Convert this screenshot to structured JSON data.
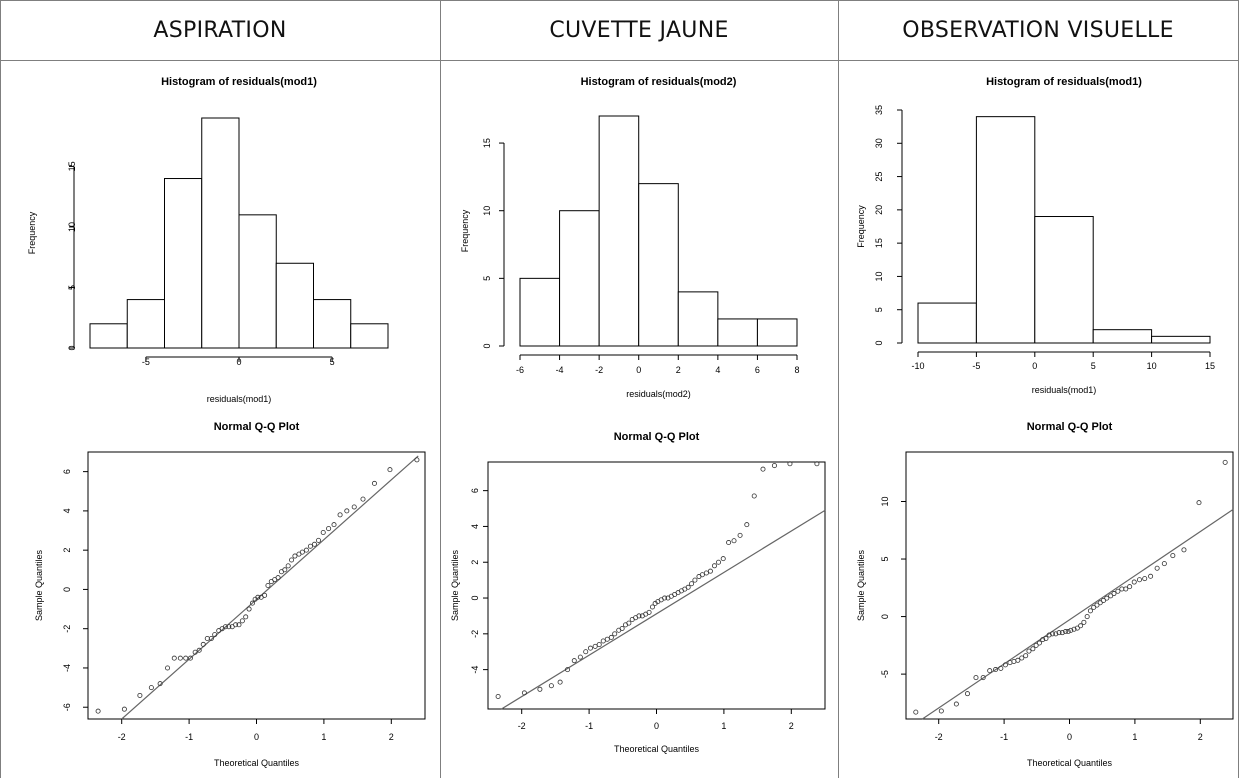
{
  "columns": [
    "ASPIRATION",
    "CUVETTE JAUNE",
    "OBSERVATION VISUELLE"
  ],
  "chart_data": [
    {
      "type": "bar",
      "panel": "aspiration-histogram",
      "title": "Histogram of residuals(mod1)",
      "xlabel": "residuals(mod1)",
      "ylabel": "Frequency",
      "bin_edges": [
        -8,
        -6,
        -4,
        -2,
        0,
        2,
        4,
        6,
        8
      ],
      "values": [
        2,
        4,
        14,
        19,
        11,
        7,
        4,
        2
      ],
      "xlim": [
        -8,
        8
      ],
      "ylim": [
        0,
        19
      ],
      "xticks": [
        -5,
        0,
        5
      ],
      "yticks": [
        0,
        5,
        10,
        15
      ]
    },
    {
      "type": "bar",
      "panel": "cuvette-histogram",
      "title": "Histogram of residuals(mod2)",
      "xlabel": "residuals(mod2)",
      "ylabel": "Frequency",
      "bin_edges": [
        -6,
        -4,
        -2,
        0,
        2,
        4,
        6,
        8
      ],
      "values": [
        5,
        10,
        17,
        12,
        4,
        2,
        2
      ],
      "xlim": [
        -6,
        8
      ],
      "ylim": [
        0,
        17
      ],
      "xticks": [
        -6,
        -4,
        -2,
        0,
        2,
        4,
        6,
        8
      ],
      "yticks": [
        0,
        5,
        10,
        15
      ]
    },
    {
      "type": "bar",
      "panel": "observation-histogram",
      "title": "Histogram of residuals(mod1)",
      "xlabel": "residuals(mod1)",
      "ylabel": "Frequency",
      "bin_edges": [
        -10,
        -5,
        0,
        5,
        10,
        15
      ],
      "values": [
        6,
        34,
        19,
        2,
        1
      ],
      "xlim": [
        -10,
        15
      ],
      "ylim": [
        0,
        35
      ],
      "xticks": [
        -10,
        -5,
        0,
        5,
        10,
        15
      ],
      "yticks": [
        0,
        5,
        10,
        15,
        20,
        25,
        30,
        35
      ]
    },
    {
      "type": "scatter",
      "panel": "aspiration-qq",
      "title": "Normal Q-Q Plot",
      "xlabel": "Theoretical Quantiles",
      "ylabel": "Sample Quantiles",
      "xlim": [
        -2.5,
        2.5
      ],
      "ylim": [
        -6.6,
        7.0
      ],
      "xticks": [
        -2,
        -1,
        0,
        1,
        2
      ],
      "yticks": [
        -6,
        -4,
        -2,
        0,
        2,
        4,
        6
      ],
      "line": {
        "x": [
          -2.0,
          2.4
        ],
        "y": [
          -6.6,
          6.8
        ]
      },
      "x": [
        -2.35,
        -1.96,
        -1.73,
        -1.56,
        -1.43,
        -1.32,
        -1.22,
        -1.13,
        -1.05,
        -0.98,
        -0.91,
        -0.85,
        -0.79,
        -0.73,
        -0.67,
        -0.62,
        -0.56,
        -0.51,
        -0.46,
        -0.41,
        -0.36,
        -0.31,
        -0.26,
        -0.21,
        -0.16,
        -0.11,
        -0.06,
        -0.02,
        0.02,
        0.07,
        0.12,
        0.17,
        0.22,
        0.27,
        0.32,
        0.37,
        0.42,
        0.47,
        0.52,
        0.57,
        0.63,
        0.68,
        0.74,
        0.8,
        0.86,
        0.92,
        0.99,
        1.07,
        1.15,
        1.24,
        1.34,
        1.45,
        1.58,
        1.75,
        1.98,
        2.38
      ],
      "y": [
        -6.2,
        -6.1,
        -5.4,
        -5.0,
        -4.8,
        -4.0,
        -3.5,
        -3.5,
        -3.5,
        -3.5,
        -3.2,
        -3.1,
        -2.8,
        -2.5,
        -2.5,
        -2.3,
        -2.1,
        -2.0,
        -1.9,
        -1.9,
        -1.9,
        -1.8,
        -1.8,
        -1.6,
        -1.4,
        -1.0,
        -0.7,
        -0.5,
        -0.4,
        -0.4,
        -0.3,
        0.2,
        0.4,
        0.5,
        0.6,
        0.9,
        1.0,
        1.2,
        1.5,
        1.7,
        1.8,
        1.9,
        2.0,
        2.2,
        2.3,
        2.5,
        2.9,
        3.1,
        3.3,
        3.8,
        4.0,
        4.2,
        4.6,
        5.4,
        6.1,
        6.6
      ]
    },
    {
      "type": "scatter",
      "panel": "cuvette-qq",
      "title": "Normal Q-Q Plot",
      "xlabel": "Theoretical Quantiles",
      "ylabel": "Sample Quantiles",
      "xlim": [
        -2.5,
        2.5
      ],
      "ylim": [
        -6.2,
        7.6
      ],
      "xticks": [
        -2,
        -1,
        0,
        1,
        2
      ],
      "yticks": [
        -4,
        -2,
        0,
        2,
        4,
        6
      ],
      "line": {
        "x": [
          -2.3,
          2.5
        ],
        "y": [
          -6.2,
          4.9
        ]
      },
      "x": [
        -2.35,
        -1.96,
        -1.73,
        -1.56,
        -1.43,
        -1.32,
        -1.22,
        -1.13,
        -1.05,
        -0.98,
        -0.91,
        -0.85,
        -0.79,
        -0.73,
        -0.67,
        -0.62,
        -0.56,
        -0.51,
        -0.46,
        -0.41,
        -0.36,
        -0.31,
        -0.26,
        -0.21,
        -0.16,
        -0.11,
        -0.06,
        -0.02,
        0.02,
        0.07,
        0.12,
        0.17,
        0.22,
        0.27,
        0.32,
        0.37,
        0.42,
        0.47,
        0.52,
        0.57,
        0.63,
        0.68,
        0.74,
        0.8,
        0.86,
        0.92,
        0.99,
        1.07,
        1.15,
        1.24,
        1.34,
        1.45,
        1.58,
        1.75,
        1.98,
        2.38
      ],
      "y": [
        -5.5,
        -5.3,
        -5.1,
        -4.9,
        -4.7,
        -4.0,
        -3.5,
        -3.3,
        -3.0,
        -2.8,
        -2.7,
        -2.6,
        -2.4,
        -2.3,
        -2.2,
        -2.0,
        -1.8,
        -1.7,
        -1.5,
        -1.4,
        -1.2,
        -1.1,
        -1.0,
        -1.0,
        -0.9,
        -0.8,
        -0.5,
        -0.3,
        -0.2,
        -0.1,
        0.0,
        0.0,
        0.1,
        0.2,
        0.3,
        0.4,
        0.5,
        0.6,
        0.8,
        1.0,
        1.2,
        1.3,
        1.4,
        1.5,
        1.8,
        2.0,
        2.2,
        3.1,
        3.2,
        3.5,
        4.1,
        5.7,
        7.2,
        7.4,
        7.5,
        7.5
      ]
    },
    {
      "type": "scatter",
      "panel": "observation-qq",
      "title": "Normal Q-Q Plot",
      "xlabel": "Theoretical Quantiles",
      "ylabel": "Sample Quantiles",
      "xlim": [
        -2.5,
        2.5
      ],
      "ylim": [
        -8.9,
        14.3
      ],
      "xticks": [
        -2,
        -1,
        0,
        1,
        2
      ],
      "yticks": [
        -5,
        0,
        5,
        10
      ],
      "line": {
        "x": [
          -2.25,
          2.5
        ],
        "y": [
          -8.9,
          9.3
        ]
      },
      "x": [
        -2.35,
        -1.96,
        -1.73,
        -1.56,
        -1.43,
        -1.32,
        -1.22,
        -1.13,
        -1.05,
        -0.98,
        -0.91,
        -0.85,
        -0.79,
        -0.73,
        -0.67,
        -0.62,
        -0.56,
        -0.51,
        -0.46,
        -0.41,
        -0.36,
        -0.31,
        -0.26,
        -0.21,
        -0.16,
        -0.11,
        -0.06,
        -0.02,
        0.02,
        0.07,
        0.12,
        0.17,
        0.22,
        0.27,
        0.32,
        0.37,
        0.42,
        0.47,
        0.52,
        0.57,
        0.63,
        0.68,
        0.74,
        0.8,
        0.86,
        0.92,
        0.99,
        1.07,
        1.15,
        1.24,
        1.34,
        1.45,
        1.58,
        1.75,
        1.98,
        2.38
      ],
      "y": [
        -8.3,
        -8.2,
        -7.6,
        -6.7,
        -5.3,
        -5.3,
        -4.7,
        -4.6,
        -4.5,
        -4.2,
        -4.0,
        -3.9,
        -3.8,
        -3.6,
        -3.4,
        -3.0,
        -2.8,
        -2.5,
        -2.3,
        -2.0,
        -1.9,
        -1.6,
        -1.5,
        -1.5,
        -1.4,
        -1.4,
        -1.3,
        -1.3,
        -1.2,
        -1.1,
        -1.0,
        -0.8,
        -0.5,
        0.0,
        0.5,
        0.8,
        1.0,
        1.2,
        1.4,
        1.6,
        1.8,
        2.0,
        2.2,
        2.4,
        2.4,
        2.6,
        3.0,
        3.2,
        3.3,
        3.5,
        4.2,
        4.6,
        5.3,
        5.8,
        9.9,
        13.4
      ]
    }
  ]
}
